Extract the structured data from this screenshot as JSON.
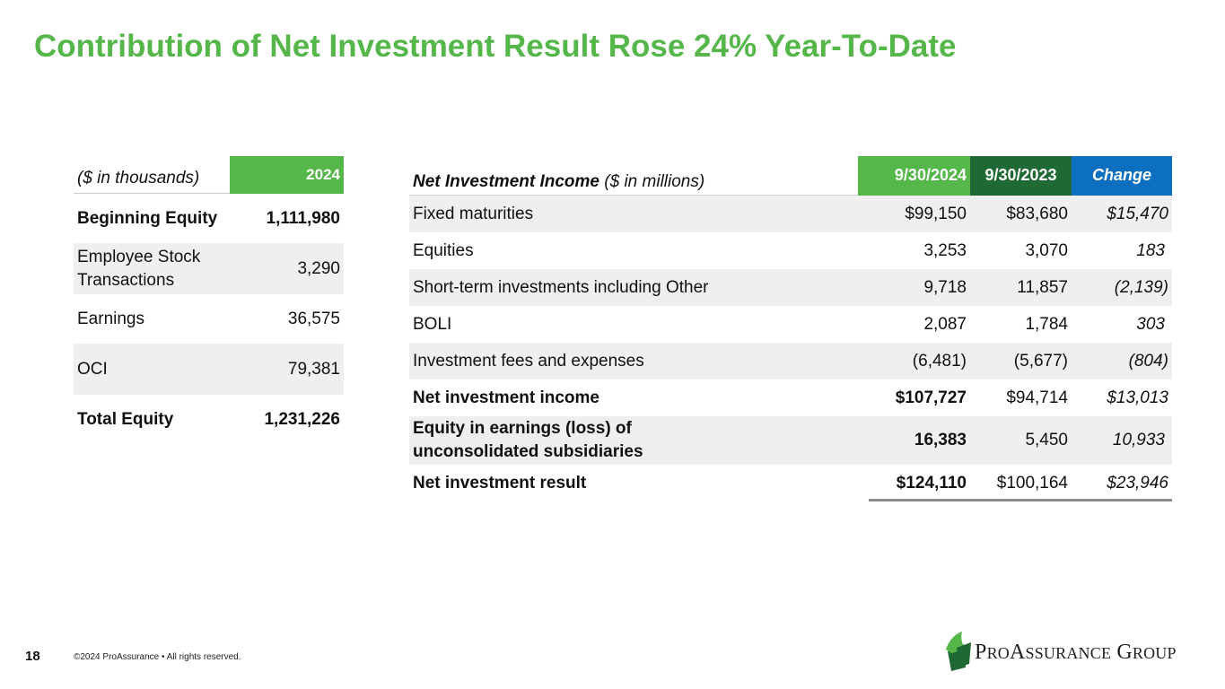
{
  "title": "Contribution of Net Investment Result Rose 24% Year-To-Date",
  "equity_table": {
    "header_label": "($ in thousands)",
    "header_year": "2024",
    "rows": [
      {
        "label": "Beginning Equity",
        "value": "1,111,980"
      },
      {
        "label": "Employee Stock Transactions",
        "value": "3,290"
      },
      {
        "label": "Earnings",
        "value": "36,575"
      },
      {
        "label": "OCI",
        "value": "79,381"
      },
      {
        "label": "Total Equity",
        "value": "1,231,226"
      }
    ]
  },
  "nii_table": {
    "header_bold": "Net Investment Income",
    "header_rest": " ($ in millions)",
    "col1": "9/30/2024",
    "col2": "9/30/2023",
    "col3": "Change",
    "rows": [
      {
        "label": "Fixed maturities",
        "v1": "$99,150",
        "v2": "$83,680",
        "v3": "$15,470"
      },
      {
        "label": "Equities",
        "v1": "3,253",
        "v2": "3,070",
        "v3": "183"
      },
      {
        "label": "Short-term investments including Other",
        "v1": "9,718",
        "v2": "11,857",
        "v3": "(2,139)"
      },
      {
        "label": "BOLI",
        "v1": "2,087",
        "v2": "1,784",
        "v3": "303"
      },
      {
        "label": "Investment fees and expenses",
        "v1": "(6,481)",
        "v2": "(5,677)",
        "v3": "(804)"
      },
      {
        "label": "Net investment income",
        "v1": "$107,727",
        "v2": "$94,714",
        "v3": "$13,013"
      },
      {
        "label": "Equity in earnings (loss) of unconsolidated subsidiaries",
        "v1": "16,383",
        "v2": "5,450",
        "v3": "10,933"
      },
      {
        "label": "Net investment result",
        "v1": "$124,110",
        "v2": "$100,164",
        "v3": "$23,946"
      }
    ]
  },
  "footer": {
    "page_number": "18",
    "copyright": "©2024 ProAssurance  •  All rights reserved."
  },
  "logo": {
    "text": "ProAssurance Group",
    "icon": "proassurance-leaf-icon",
    "colors": {
      "light_green": "#55b64a",
      "dark_green": "#1f6a34"
    }
  }
}
